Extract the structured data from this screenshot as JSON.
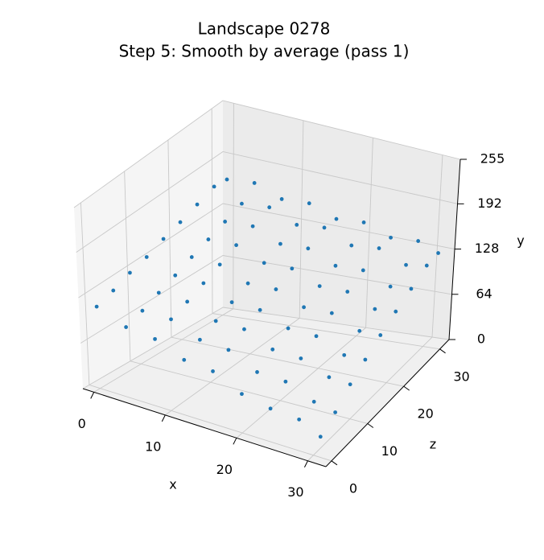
{
  "chart_data": {
    "type": "scatter3d",
    "title": "Landscape 0278",
    "subtitle": "Step 5: Smooth by average (pass 1)",
    "x_label": "x",
    "y_label": "y",
    "z_label": "z",
    "xlim": [
      -1.55,
      32.55
    ],
    "zlim": [
      -1.55,
      32.55
    ],
    "ylim": [
      0,
      255
    ],
    "xticks": [
      0,
      10,
      20,
      30
    ],
    "zticks": [
      0,
      10,
      20,
      30
    ],
    "yticks": [
      0,
      64,
      128,
      192,
      255
    ],
    "grid": true,
    "series": [
      {
        "color": "#1f77b4",
        "x": [
          0,
          4,
          8,
          12,
          16,
          20,
          24,
          28,
          31,
          0,
          4,
          8,
          12,
          16,
          20,
          24,
          28,
          31,
          0,
          4,
          8,
          12,
          16,
          20,
          24,
          28,
          31,
          0,
          4,
          8,
          12,
          16,
          20,
          24,
          28,
          31,
          0,
          4,
          8,
          12,
          16,
          20,
          24,
          28,
          31,
          0,
          4,
          8,
          12,
          16,
          20,
          24,
          28,
          31,
          0,
          4,
          8,
          12,
          16,
          20,
          24,
          28,
          31,
          0,
          4,
          8,
          12,
          16,
          20,
          24,
          28,
          31,
          0,
          4,
          8,
          12,
          16,
          20,
          24,
          28,
          31
        ],
        "z": [
          0,
          0,
          0,
          0,
          0,
          0,
          0,
          0,
          0,
          4,
          4,
          4,
          4,
          4,
          4,
          4,
          4,
          4,
          8,
          8,
          8,
          8,
          8,
          8,
          8,
          8,
          8,
          12,
          12,
          12,
          12,
          12,
          12,
          12,
          12,
          12,
          16,
          16,
          16,
          16,
          16,
          16,
          16,
          16,
          16,
          20,
          20,
          20,
          20,
          20,
          20,
          20,
          20,
          20,
          24,
          24,
          24,
          24,
          24,
          24,
          24,
          24,
          24,
          28,
          28,
          28,
          28,
          28,
          28,
          28,
          28,
          28,
          31,
          31,
          31,
          31,
          31,
          31,
          31,
          31,
          31
        ],
        "values": [
          114,
          97,
          92,
          75,
          71,
          52,
          44,
          41,
          27,
          121,
          104,
          103,
          86,
          83,
          64,
          62,
          46,
          40,
          130,
          113,
          111,
          95,
          94,
          77,
          75,
          60,
          58,
          136,
          121,
          120,
          104,
          103,
          88,
          87,
          71,
          72,
          145,
          130,
          129,
          113,
          114,
          99,
          100,
          85,
          86,
          152,
          138,
          139,
          124,
          125,
          110,
          111,
          96,
          99,
          160,
          146,
          148,
          133,
          135,
          120,
          122,
          108,
          111,
          168,
          154,
          157,
          142,
          146,
          130,
          134,
          119,
          124,
          166,
          169,
          156,
          158,
          145,
          148,
          135,
          138,
          127
        ]
      }
    ]
  }
}
